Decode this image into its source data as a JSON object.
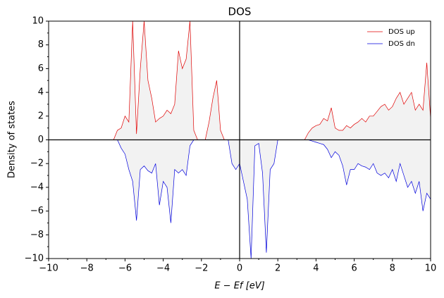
{
  "chart_data": {
    "type": "line",
    "title": "DOS",
    "xlabel": "E − Ef [eV]",
    "ylabel": "Density of states",
    "x": [
      -10,
      -9.8,
      -9.6,
      -9.4,
      -9.2,
      -9,
      -8.8,
      -8.6,
      -8.4,
      -8.2,
      -8,
      -7.8,
      -7.6,
      -7.4,
      -7.2,
      -7,
      -6.8,
      -6.6,
      -6.4,
      -6.2,
      -6,
      -5.8,
      -5.6,
      -5.4,
      -5.2,
      -5,
      -4.8,
      -4.6,
      -4.4,
      -4.2,
      -4,
      -3.8,
      -3.6,
      -3.4,
      -3.2,
      -3,
      -2.8,
      -2.6,
      -2.4,
      -2.2,
      -2,
      -1.8,
      -1.6,
      -1.4,
      -1.2,
      -1,
      -0.8,
      -0.6,
      -0.4,
      -0.2,
      0,
      0.2,
      0.4,
      0.6,
      0.8,
      1,
      1.2,
      1.4,
      1.6,
      1.8,
      2,
      2.2,
      2.4,
      2.6,
      2.8,
      3,
      3.2,
      3.4,
      3.6,
      3.8,
      4,
      4.2,
      4.4,
      4.6,
      4.8,
      5,
      5.2,
      5.4,
      5.6,
      5.8,
      6,
      6.2,
      6.4,
      6.6,
      6.8,
      7,
      7.2,
      7.4,
      7.6,
      7.8,
      8,
      8.2,
      8.4,
      8.6,
      8.8,
      9,
      9.2,
      9.4,
      9.6,
      9.8,
      10
    ],
    "series": [
      {
        "name": "DOS up",
        "color": "#e00000",
        "values": [
          0,
          0,
          0,
          0,
          0,
          0,
          0,
          0,
          0,
          0,
          0,
          0,
          0,
          0,
          0,
          0,
          0,
          0,
          0.8,
          1.0,
          2.0,
          1.5,
          10,
          0.5,
          6,
          10,
          5,
          3.5,
          1.5,
          1.8,
          2.0,
          2.5,
          2.2,
          3,
          7.5,
          6,
          6.8,
          10,
          0.8,
          0,
          0,
          0,
          1.5,
          3.5,
          5,
          0.8,
          0,
          0,
          0,
          0,
          0,
          0,
          0,
          0,
          0,
          0,
          0,
          0,
          0,
          0,
          0,
          0,
          0,
          0,
          0,
          0,
          0,
          0,
          0.6,
          1.0,
          1.2,
          1.3,
          1.8,
          1.6,
          2.7,
          1.0,
          0.8,
          0.8,
          1.2,
          1.0,
          1.3,
          1.5,
          1.8,
          1.5,
          2.0,
          2.0,
          2.4,
          2.8,
          3.0,
          2.5,
          2.8,
          3.5,
          4.0,
          3.0,
          3.5,
          4.0,
          2.5,
          3.0,
          2.5,
          6.5,
          1.8
        ]
      },
      {
        "name": "DOS dn",
        "color": "#0000dd",
        "values": [
          0,
          0,
          0,
          0,
          0,
          0,
          0,
          0,
          0,
          0,
          0,
          0,
          0,
          0,
          0,
          0,
          0,
          0,
          0,
          -0.7,
          -1.2,
          -2.5,
          -3.5,
          -6.8,
          -2.5,
          -2.2,
          -2.6,
          -2.8,
          -2.0,
          -5.5,
          -3.5,
          -4.0,
          -7.0,
          -2.5,
          -2.8,
          -2.5,
          -3.0,
          -0.5,
          0,
          0,
          0,
          0,
          0,
          0,
          0,
          0,
          0,
          0,
          -2.0,
          -2.5,
          -2.0,
          -3.5,
          -5.0,
          -10,
          -0.5,
          -0.3,
          -2.8,
          -9.5,
          -2.5,
          -2.0,
          0,
          0,
          0,
          0,
          0,
          0,
          0,
          0,
          0,
          -0.1,
          -0.2,
          -0.3,
          -0.4,
          -0.8,
          -1.5,
          -1.0,
          -1.3,
          -2.2,
          -3.8,
          -2.5,
          -2.5,
          -2.0,
          -2.2,
          -2.3,
          -2.5,
          -2.0,
          -2.8,
          -3.0,
          -2.8,
          -3.2,
          -2.5,
          -3.5,
          -2.0,
          -3.0,
          -4.0,
          -3.5,
          -4.5,
          -3.5,
          -6.0,
          -4.5,
          -5.0
        ]
      }
    ],
    "fill_color": "#f2f2f2",
    "xlim": [
      -10,
      10
    ],
    "xticks": [
      {
        "value": -10,
        "label": "−10"
      },
      {
        "value": -8,
        "label": "−8"
      },
      {
        "value": -6,
        "label": "−6"
      },
      {
        "value": -4,
        "label": "−4"
      },
      {
        "value": -2,
        "label": "−2"
      },
      0,
      2,
      4,
      6,
      8,
      10
    ],
    "ylim": [
      -10,
      10
    ],
    "yticks": [
      {
        "value": -10,
        "label": "−10"
      },
      {
        "value": -8,
        "label": "−8"
      },
      {
        "value": -6,
        "label": "−6"
      },
      {
        "value": -4,
        "label": "−4"
      },
      {
        "value": -2,
        "label": "−2"
      },
      0,
      2,
      4,
      6,
      8,
      10
    ],
    "legend": "upper right"
  }
}
